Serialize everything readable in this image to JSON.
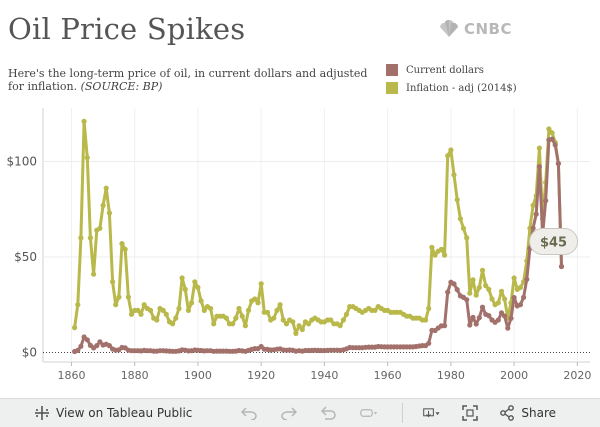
{
  "title": "Oil Price Spikes",
  "brand": "CNBC",
  "subtitle": "Here's the long-term price of oil, in current dollars and adjusted for inflation.",
  "source": "(SOURCE: BP)",
  "toolbar": {
    "view_label": "View on Tableau Public",
    "share_label": "Share"
  },
  "chart_data": {
    "type": "line",
    "xlim": [
      1851,
      2024
    ],
    "ylim": [
      -5,
      128
    ],
    "x_ticks": [
      1860,
      1880,
      1900,
      1920,
      1940,
      1960,
      1980,
      2000,
      2020
    ],
    "y_ticks": [
      {
        "value": 0,
        "label": "$0"
      },
      {
        "value": 50,
        "label": "$50"
      },
      {
        "value": 100,
        "label": "$100"
      }
    ],
    "grid": true,
    "legend_position": "top-right",
    "annotation": {
      "x": 2015,
      "y": 45,
      "label": "$45"
    },
    "series": [
      {
        "name": "Current dollars",
        "color": "#a3716b",
        "points": [
          [
            1861,
            0.5
          ],
          [
            1862,
            1.1
          ],
          [
            1863,
            3.2
          ],
          [
            1864,
            8.1
          ],
          [
            1865,
            6.6
          ],
          [
            1866,
            3.7
          ],
          [
            1867,
            2.4
          ],
          [
            1868,
            3.6
          ],
          [
            1869,
            5.6
          ],
          [
            1870,
            3.9
          ],
          [
            1871,
            4.3
          ],
          [
            1872,
            3.6
          ],
          [
            1873,
            1.8
          ],
          [
            1874,
            1.2
          ],
          [
            1875,
            1.4
          ],
          [
            1876,
            2.6
          ],
          [
            1877,
            2.4
          ],
          [
            1878,
            1.2
          ],
          [
            1879,
            0.9
          ],
          [
            1880,
            0.9
          ],
          [
            1881,
            0.9
          ],
          [
            1882,
            0.8
          ],
          [
            1883,
            1.1
          ],
          [
            1884,
            0.9
          ],
          [
            1885,
            0.9
          ],
          [
            1886,
            0.7
          ],
          [
            1887,
            0.7
          ],
          [
            1888,
            0.9
          ],
          [
            1889,
            0.9
          ],
          [
            1890,
            0.8
          ],
          [
            1891,
            0.7
          ],
          [
            1892,
            0.6
          ],
          [
            1893,
            0.6
          ],
          [
            1894,
            0.8
          ],
          [
            1895,
            1.4
          ],
          [
            1896,
            1.2
          ],
          [
            1897,
            0.8
          ],
          [
            1898,
            0.9
          ],
          [
            1899,
            1.3
          ],
          [
            1900,
            1.2
          ],
          [
            1901,
            1.0
          ],
          [
            1902,
            0.8
          ],
          [
            1903,
            0.9
          ],
          [
            1904,
            0.9
          ],
          [
            1905,
            0.6
          ],
          [
            1906,
            0.7
          ],
          [
            1907,
            0.7
          ],
          [
            1908,
            0.7
          ],
          [
            1909,
            0.7
          ],
          [
            1910,
            0.6
          ],
          [
            1911,
            0.6
          ],
          [
            1912,
            0.7
          ],
          [
            1913,
            1.0
          ],
          [
            1914,
            0.8
          ],
          [
            1915,
            0.6
          ],
          [
            1916,
            1.1
          ],
          [
            1917,
            1.6
          ],
          [
            1918,
            2.0
          ],
          [
            1919,
            2.0
          ],
          [
            1920,
            3.1
          ],
          [
            1921,
            1.7
          ],
          [
            1922,
            1.6
          ],
          [
            1923,
            1.3
          ],
          [
            1924,
            1.4
          ],
          [
            1925,
            1.7
          ],
          [
            1926,
            1.9
          ],
          [
            1927,
            1.3
          ],
          [
            1928,
            1.2
          ],
          [
            1929,
            1.3
          ],
          [
            1930,
            1.2
          ],
          [
            1931,
            0.7
          ],
          [
            1932,
            0.9
          ],
          [
            1933,
            0.7
          ],
          [
            1934,
            1.0
          ],
          [
            1935,
            1.0
          ],
          [
            1936,
            1.1
          ],
          [
            1937,
            1.2
          ],
          [
            1938,
            1.1
          ],
          [
            1939,
            1.0
          ],
          [
            1940,
            1.0
          ],
          [
            1941,
            1.1
          ],
          [
            1942,
            1.2
          ],
          [
            1943,
            1.2
          ],
          [
            1944,
            1.2
          ],
          [
            1945,
            1.1
          ],
          [
            1946,
            1.4
          ],
          [
            1947,
            1.9
          ],
          [
            1948,
            2.6
          ],
          [
            1949,
            2.5
          ],
          [
            1950,
            2.5
          ],
          [
            1951,
            2.5
          ],
          [
            1952,
            2.5
          ],
          [
            1953,
            2.7
          ],
          [
            1954,
            2.8
          ],
          [
            1955,
            2.8
          ],
          [
            1956,
            2.8
          ],
          [
            1957,
            3.1
          ],
          [
            1958,
            3.0
          ],
          [
            1959,
            2.9
          ],
          [
            1960,
            2.9
          ],
          [
            1961,
            2.9
          ],
          [
            1962,
            2.9
          ],
          [
            1963,
            2.9
          ],
          [
            1964,
            2.9
          ],
          [
            1965,
            2.9
          ],
          [
            1966,
            2.9
          ],
          [
            1967,
            2.9
          ],
          [
            1968,
            2.9
          ],
          [
            1969,
            3.1
          ],
          [
            1970,
            3.4
          ],
          [
            1971,
            3.6
          ],
          [
            1972,
            3.6
          ],
          [
            1973,
            4.8
          ],
          [
            1974,
            11.6
          ],
          [
            1975,
            11.5
          ],
          [
            1976,
            12.8
          ],
          [
            1977,
            13.9
          ],
          [
            1978,
            14.0
          ],
          [
            1979,
            31.6
          ],
          [
            1980,
            36.8
          ],
          [
            1981,
            35.9
          ],
          [
            1982,
            32.9
          ],
          [
            1983,
            29.6
          ],
          [
            1984,
            28.8
          ],
          [
            1985,
            27.6
          ],
          [
            1986,
            14.4
          ],
          [
            1987,
            18.4
          ],
          [
            1988,
            14.9
          ],
          [
            1989,
            18.2
          ],
          [
            1990,
            23.7
          ],
          [
            1991,
            20.0
          ],
          [
            1992,
            19.3
          ],
          [
            1993,
            17.0
          ],
          [
            1994,
            15.8
          ],
          [
            1995,
            17.0
          ],
          [
            1996,
            20.7
          ],
          [
            1997,
            19.1
          ],
          [
            1998,
            12.7
          ],
          [
            1999,
            17.9
          ],
          [
            2000,
            28.7
          ],
          [
            2001,
            24.4
          ],
          [
            2002,
            25.0
          ],
          [
            2003,
            28.8
          ],
          [
            2004,
            38.3
          ],
          [
            2005,
            54.5
          ],
          [
            2006,
            65.1
          ],
          [
            2007,
            72.4
          ],
          [
            2008,
            97.3
          ],
          [
            2009,
            61.7
          ],
          [
            2010,
            79.5
          ],
          [
            2011,
            111.3
          ],
          [
            2012,
            111.7
          ],
          [
            2013,
            108.7
          ],
          [
            2014,
            98.9
          ],
          [
            2015,
            45.0
          ]
        ]
      },
      {
        "name": "Inflation - adj (2014$)",
        "color": "#b9b84a",
        "points": [
          [
            1861,
            13
          ],
          [
            1862,
            25
          ],
          [
            1863,
            60
          ],
          [
            1864,
            121
          ],
          [
            1865,
            102
          ],
          [
            1866,
            60
          ],
          [
            1867,
            41
          ],
          [
            1868,
            64
          ],
          [
            1869,
            65
          ],
          [
            1870,
            77
          ],
          [
            1871,
            86
          ],
          [
            1872,
            73
          ],
          [
            1873,
            37
          ],
          [
            1874,
            25
          ],
          [
            1875,
            29
          ],
          [
            1876,
            57
          ],
          [
            1877,
            54
          ],
          [
            1878,
            29
          ],
          [
            1879,
            20
          ],
          [
            1880,
            22
          ],
          [
            1881,
            22
          ],
          [
            1882,
            20
          ],
          [
            1883,
            25
          ],
          [
            1884,
            23
          ],
          [
            1885,
            22
          ],
          [
            1886,
            18
          ],
          [
            1887,
            17
          ],
          [
            1888,
            23
          ],
          [
            1889,
            22
          ],
          [
            1890,
            20
          ],
          [
            1891,
            16
          ],
          [
            1892,
            15
          ],
          [
            1893,
            18
          ],
          [
            1894,
            23
          ],
          [
            1895,
            39
          ],
          [
            1896,
            33
          ],
          [
            1897,
            22
          ],
          [
            1898,
            26
          ],
          [
            1899,
            37
          ],
          [
            1900,
            34
          ],
          [
            1901,
            27
          ],
          [
            1902,
            22
          ],
          [
            1903,
            24
          ],
          [
            1904,
            23
          ],
          [
            1905,
            15
          ],
          [
            1906,
            19
          ],
          [
            1907,
            19
          ],
          [
            1908,
            19
          ],
          [
            1909,
            18
          ],
          [
            1910,
            15
          ],
          [
            1911,
            15
          ],
          [
            1912,
            18
          ],
          [
            1913,
            23
          ],
          [
            1914,
            19
          ],
          [
            1915,
            14
          ],
          [
            1916,
            22
          ],
          [
            1917,
            27
          ],
          [
            1918,
            28
          ],
          [
            1919,
            26
          ],
          [
            1920,
            36
          ],
          [
            1921,
            21
          ],
          [
            1922,
            21
          ],
          [
            1923,
            17
          ],
          [
            1924,
            18
          ],
          [
            1925,
            22
          ],
          [
            1926,
            25
          ],
          [
            1927,
            17
          ],
          [
            1928,
            15
          ],
          [
            1929,
            17
          ],
          [
            1930,
            16
          ],
          [
            1931,
            10
          ],
          [
            1932,
            14
          ],
          [
            1933,
            12
          ],
          [
            1934,
            16
          ],
          [
            1935,
            15
          ],
          [
            1936,
            17
          ],
          [
            1937,
            18
          ],
          [
            1938,
            17
          ],
          [
            1939,
            16
          ],
          [
            1940,
            16
          ],
          [
            1941,
            17
          ],
          [
            1942,
            17
          ],
          [
            1943,
            15
          ],
          [
            1944,
            15
          ],
          [
            1945,
            14
          ],
          [
            1946,
            17
          ],
          [
            1947,
            20
          ],
          [
            1948,
            24
          ],
          [
            1949,
            24
          ],
          [
            1950,
            23
          ],
          [
            1951,
            22
          ],
          [
            1952,
            21
          ],
          [
            1953,
            22
          ],
          [
            1954,
            23
          ],
          [
            1955,
            22
          ],
          [
            1956,
            22
          ],
          [
            1957,
            24
          ],
          [
            1958,
            23
          ],
          [
            1959,
            22
          ],
          [
            1960,
            22
          ],
          [
            1961,
            21
          ],
          [
            1962,
            21
          ],
          [
            1963,
            21
          ],
          [
            1964,
            21
          ],
          [
            1965,
            20
          ],
          [
            1966,
            19
          ],
          [
            1967,
            19
          ],
          [
            1968,
            18
          ],
          [
            1969,
            18
          ],
          [
            1970,
            18
          ],
          [
            1971,
            17
          ],
          [
            1972,
            17
          ],
          [
            1973,
            23
          ],
          [
            1974,
            55
          ],
          [
            1975,
            51
          ],
          [
            1976,
            53
          ],
          [
            1977,
            54
          ],
          [
            1978,
            51
          ],
          [
            1979,
            103
          ],
          [
            1980,
            106
          ],
          [
            1981,
            93
          ],
          [
            1982,
            80
          ],
          [
            1983,
            70
          ],
          [
            1984,
            65
          ],
          [
            1985,
            60
          ],
          [
            1986,
            31
          ],
          [
            1987,
            38
          ],
          [
            1988,
            30
          ],
          [
            1989,
            34
          ],
          [
            1990,
            43
          ],
          [
            1991,
            35
          ],
          [
            1992,
            33
          ],
          [
            1993,
            28
          ],
          [
            1994,
            25
          ],
          [
            1995,
            26
          ],
          [
            1996,
            32
          ],
          [
            1997,
            28
          ],
          [
            1998,
            18
          ],
          [
            1999,
            26
          ],
          [
            2000,
            39
          ],
          [
            2001,
            33
          ],
          [
            2002,
            34
          ],
          [
            2003,
            37
          ],
          [
            2004,
            48
          ],
          [
            2005,
            65
          ],
          [
            2006,
            77
          ],
          [
            2007,
            82
          ],
          [
            2008,
            107
          ],
          [
            2009,
            70
          ],
          [
            2010,
            89
          ],
          [
            2011,
            117
          ],
          [
            2012,
            115
          ],
          [
            2013,
            110
          ],
          [
            2014,
            99
          ],
          [
            2015,
            45
          ]
        ]
      }
    ]
  }
}
